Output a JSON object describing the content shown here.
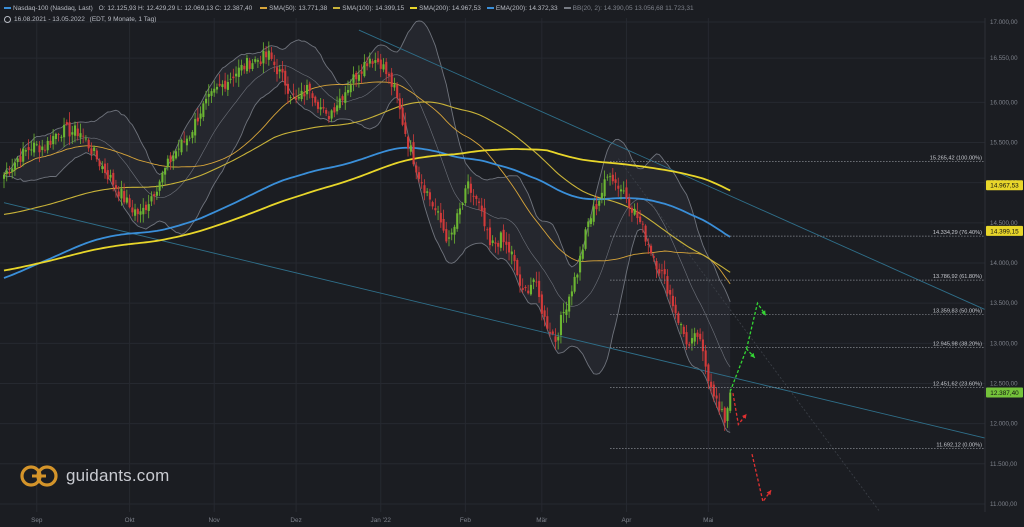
{
  "header": {
    "instrument": "Nasdaq-100 (Nasdaq, Last)",
    "ohlc": "O: 12.125,93  H: 12.429,29  L: 12.069,13  C: 12.387,40",
    "indicators": [
      {
        "label": "SMA(50)",
        "value": "13.771,38",
        "color": "#d8a53a"
      },
      {
        "label": "SMA(100)",
        "value": "14.399,15",
        "color": "#c9b339"
      },
      {
        "label": "SMA(200)",
        "value": "14.967,53",
        "color": "#e8d62a"
      },
      {
        "label": "EMA(200)",
        "value": "14.372,33",
        "color": "#3a8fd9"
      },
      {
        "label": "BB(20, 2)",
        "value": "14.390,05  13.056,68  11.723,31",
        "color": "#777b84"
      }
    ],
    "range": "16.08.2021 - 13.05.2022",
    "range_note": "(EDT, 9 Monate, 1 Tag)"
  },
  "brand": {
    "name": "guidants.com"
  },
  "chart_data": {
    "type": "candlestick",
    "ylim": [
      10900,
      17050
    ],
    "y_ticks": [
      "17.000,00",
      "16.550,00",
      "16.000,00",
      "15.500,00",
      "15.000,00",
      "14.500,00",
      "14.000,00",
      "13.500,00",
      "13.000,00",
      "12.500,00",
      "12.000,00",
      "11.500,00",
      "11.000,00"
    ],
    "y_tick_values": [
      17000,
      16550,
      16000,
      15500,
      15000,
      14500,
      14000,
      13500,
      13000,
      12500,
      12000,
      11500,
      11000
    ],
    "x_labels": [
      {
        "label": "Sep",
        "day": 12
      },
      {
        "label": "Okt",
        "day": 46
      },
      {
        "label": "Nov",
        "day": 77
      },
      {
        "label": "Dez",
        "day": 107
      },
      {
        "label": "Jan '22",
        "day": 138
      },
      {
        "label": "Feb",
        "day": 169
      },
      {
        "label": "Mär",
        "day": 197
      },
      {
        "label": "Apr",
        "day": 228
      },
      {
        "label": "Mai",
        "day": 258
      }
    ],
    "fib_levels": [
      {
        "label": "15.265,42 (100.00%)",
        "value": 15265.42
      },
      {
        "label": "14.334,29 (76.40%)",
        "value": 14334.29
      },
      {
        "label": "13.786,92 (61.80%)",
        "value": 13786.92
      },
      {
        "label": "13.359,83 (50.00%)",
        "value": 13359.83
      },
      {
        "label": "12.945,98 (38.20%)",
        "value": 12945.98
      },
      {
        "label": "12.451,62 (23.60%)",
        "value": 12451.62
      },
      {
        "label": "11.692,12 (0.00%)",
        "value": 11692.12
      }
    ],
    "price_tags": [
      {
        "label": "14.967,53",
        "value": 14967.53,
        "color": "#e8d62a"
      },
      {
        "label": "14.399,15",
        "value": 14399.15,
        "color": "#e8d62a"
      },
      {
        "label": "12.387,40",
        "value": 12387.4,
        "color": "#74c23a"
      }
    ],
    "keypoints": [
      {
        "day": 0,
        "close": 15100
      },
      {
        "day": 5,
        "close": 15300
      },
      {
        "day": 10,
        "close": 15450
      },
      {
        "day": 15,
        "close": 15450
      },
      {
        "day": 20,
        "close": 15650
      },
      {
        "day": 28,
        "close": 15630
      },
      {
        "day": 34,
        "close": 15300
      },
      {
        "day": 40,
        "close": 15000
      },
      {
        "day": 46,
        "close": 14700
      },
      {
        "day": 50,
        "close": 14600
      },
      {
        "day": 55,
        "close": 14900
      },
      {
        "day": 62,
        "close": 15350
      },
      {
        "day": 68,
        "close": 15600
      },
      {
        "day": 72,
        "close": 15900
      },
      {
        "day": 78,
        "close": 16150
      },
      {
        "day": 84,
        "close": 16350
      },
      {
        "day": 90,
        "close": 16500
      },
      {
        "day": 97,
        "close": 16580
      },
      {
        "day": 103,
        "close": 16250
      },
      {
        "day": 107,
        "close": 16000
      },
      {
        "day": 112,
        "close": 16200
      },
      {
        "day": 118,
        "close": 15800
      },
      {
        "day": 124,
        "close": 16100
      },
      {
        "day": 130,
        "close": 16400
      },
      {
        "day": 134,
        "close": 16560
      },
      {
        "day": 138,
        "close": 16500
      },
      {
        "day": 143,
        "close": 16150
      },
      {
        "day": 148,
        "close": 15500
      },
      {
        "day": 152,
        "close": 15100
      },
      {
        "day": 156,
        "close": 14800
      },
      {
        "day": 160,
        "close": 14500
      },
      {
        "day": 163,
        "close": 14250
      },
      {
        "day": 167,
        "close": 14650
      },
      {
        "day": 170,
        "close": 14950
      },
      {
        "day": 174,
        "close": 14700
      },
      {
        "day": 178,
        "close": 14200
      },
      {
        "day": 182,
        "close": 14300
      },
      {
        "day": 186,
        "close": 14100
      },
      {
        "day": 190,
        "close": 13600
      },
      {
        "day": 194,
        "close": 13800
      },
      {
        "day": 198,
        "close": 13300
      },
      {
        "day": 202,
        "close": 13050
      },
      {
        "day": 206,
        "close": 13500
      },
      {
        "day": 210,
        "close": 13900
      },
      {
        "day": 214,
        "close": 14500
      },
      {
        "day": 218,
        "close": 14800
      },
      {
        "day": 222,
        "close": 15150
      },
      {
        "day": 224,
        "close": 15000
      },
      {
        "day": 227,
        "close": 14900
      },
      {
        "day": 230,
        "close": 14700
      },
      {
        "day": 233,
        "close": 14500
      },
      {
        "day": 236,
        "close": 14250
      },
      {
        "day": 239,
        "close": 14000
      },
      {
        "day": 242,
        "close": 13800
      },
      {
        "day": 245,
        "close": 13500
      },
      {
        "day": 248,
        "close": 13200
      },
      {
        "day": 251,
        "close": 12950
      },
      {
        "day": 254,
        "close": 13100
      },
      {
        "day": 256,
        "close": 12850
      },
      {
        "day": 258,
        "close": 12600
      },
      {
        "day": 260,
        "close": 12400
      },
      {
        "day": 262,
        "close": 12150
      },
      {
        "day": 264,
        "close": 12050
      },
      {
        "day": 266,
        "close": 12387.4
      }
    ]
  }
}
